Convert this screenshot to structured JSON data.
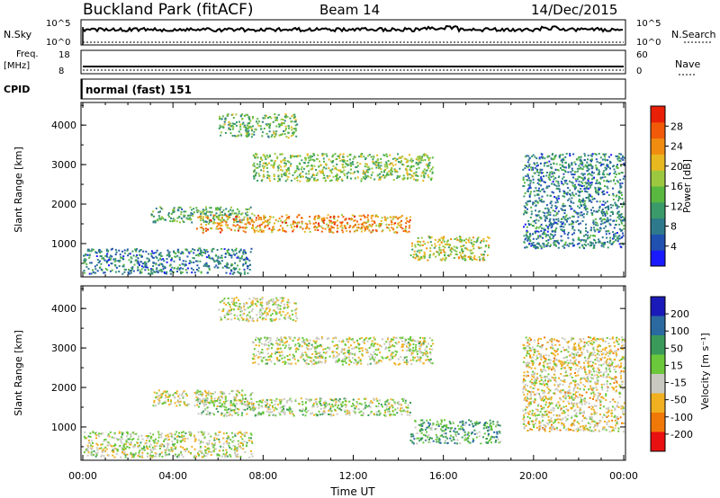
{
  "header": {
    "station": "Buckland Park (fitACF)",
    "beam": "Beam 14",
    "date": "14/Dec/2015"
  },
  "status_panels": {
    "nsky_label": "N.Sky",
    "nsky_ticks": [
      "10^5",
      "10^0"
    ],
    "nsearch_label": "N.Search",
    "nsearch_ticks": [
      "10^5",
      "10^0"
    ],
    "freq_label_line1": "Freq.",
    "freq_label_line2": "[MHz]",
    "freq_ticks": [
      "18",
      "8"
    ],
    "nave_label": "Nave",
    "nave_ticks": [
      "60",
      "0"
    ],
    "cpid_label": "CPID",
    "cpid_text": "normal (fast) 151"
  },
  "chart_data": [
    {
      "type": "heatmap",
      "panel": "power",
      "ylabel": "Slant Range [km]",
      "xlabel": "",
      "x_range_hours": [
        0,
        24
      ],
      "ylim": [
        180,
        4550
      ],
      "yticks": [
        "1000",
        "2000",
        "3000",
        "4000"
      ],
      "colorbar": {
        "label": "Power [dB]",
        "range": [
          0,
          32
        ],
        "ticks": [
          "4",
          "8",
          "12",
          "16",
          "20",
          "24",
          "28"
        ],
        "colors": [
          "#1a1aff",
          "#2050b0",
          "#2e7a8c",
          "#3a9a6a",
          "#58b840",
          "#9cc840",
          "#e8b820",
          "#f08c10",
          "#f05a08",
          "#e82008"
        ]
      },
      "features": [
        {
          "t": [
            0.0,
            7.5
          ],
          "range": [
            250,
            900
          ],
          "level": 8
        },
        {
          "t": [
            3.0,
            7.5
          ],
          "range": [
            1550,
            1950
          ],
          "level": 12
        },
        {
          "t": [
            5.0,
            14.5
          ],
          "range": [
            1300,
            1750
          ],
          "level": 24
        },
        {
          "t": [
            14.5,
            18.0
          ],
          "range": [
            600,
            1200
          ],
          "level": 18
        },
        {
          "t": [
            6.0,
            9.5
          ],
          "range": [
            3700,
            4300
          ],
          "level": 14
        },
        {
          "t": [
            7.5,
            15.5
          ],
          "range": [
            2600,
            3300
          ],
          "level": 16
        },
        {
          "t": [
            19.5,
            24.0
          ],
          "range": [
            900,
            3300
          ],
          "level": 8
        }
      ]
    },
    {
      "type": "heatmap",
      "panel": "velocity",
      "ylabel": "Slant Range [km]",
      "xlabel": "Time UT",
      "x_range_hours": [
        0,
        24
      ],
      "xticks": [
        "00:00",
        "04:00",
        "08:00",
        "12:00",
        "16:00",
        "20:00",
        "00:00"
      ],
      "ylim": [
        180,
        4550
      ],
      "yticks": [
        "1000",
        "2000",
        "3000",
        "4000"
      ],
      "colorbar": {
        "label": "Velocity [m s⁻¹]",
        "range": [
          -250,
          250
        ],
        "ticks": [
          "200",
          "100",
          "50",
          "15",
          "-15",
          "-50",
          "-100",
          "-200"
        ],
        "colors": [
          "#1a1ab8",
          "#2a6aa0",
          "#3a9a5a",
          "#6ac83a",
          "#c8c8c0",
          "#f0b020",
          "#f07808",
          "#e81010"
        ]
      },
      "features": [
        {
          "t": [
            0.0,
            7.5
          ],
          "range": [
            250,
            900
          ],
          "v": -20
        },
        {
          "t": [
            3.0,
            7.5
          ],
          "range": [
            1550,
            1950
          ],
          "v": -30
        },
        {
          "t": [
            5.0,
            14.5
          ],
          "range": [
            1300,
            1750
          ],
          "v": 0
        },
        {
          "t": [
            14.5,
            18.5
          ],
          "range": [
            600,
            1200
          ],
          "v": 80
        },
        {
          "t": [
            6.0,
            9.5
          ],
          "range": [
            3700,
            4300
          ],
          "v": -40
        },
        {
          "t": [
            7.5,
            15.5
          ],
          "range": [
            2600,
            3300
          ],
          "v": -20
        },
        {
          "t": [
            19.5,
            24.0
          ],
          "range": [
            900,
            3300
          ],
          "v": -60
        }
      ]
    }
  ]
}
